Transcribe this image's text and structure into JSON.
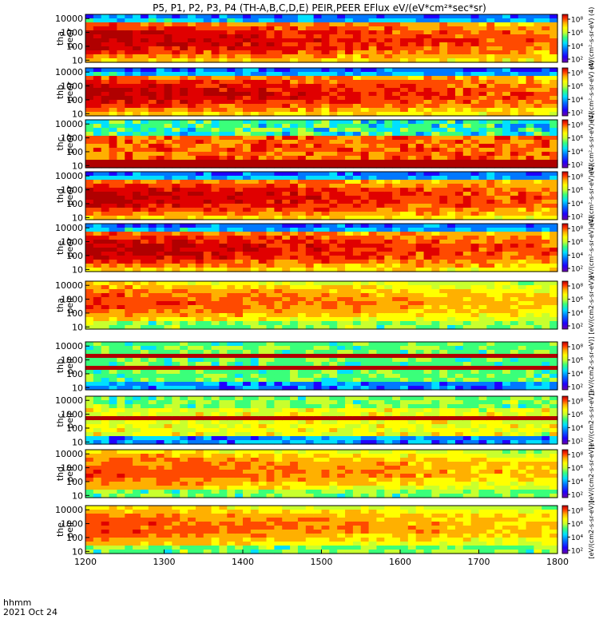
{
  "title": "P5, P1, P2, P3, P4 (TH-A,B,C,D,E) PEIR,PEER EFlux eV/(eV*cm²*sec*sr)",
  "colors": {
    "frame": "#000000",
    "background": "#ffffff",
    "colormap": [
      "#6b00a8",
      "#1f00ff",
      "#0078ff",
      "#00e0ff",
      "#3aff7a",
      "#c8ff2e",
      "#ffff00",
      "#ffb000",
      "#ff4a00",
      "#e00000",
      "#b00000"
    ]
  },
  "chart_data": {
    "type": "heatmap",
    "xaxis": {
      "label_line1": "hhmm",
      "label_line2": "2021 Oct 24",
      "range": [
        1200,
        1800
      ],
      "ticks": [
        1200,
        1300,
        1400,
        1500,
        1600,
        1700,
        1800
      ],
      "tick_labels": [
        "1200",
        "1300",
        "1400",
        "1500",
        "1600",
        "1700",
        "1800"
      ]
    },
    "yaxis": {
      "scale": "log",
      "range": [
        7,
        20000
      ],
      "tick_values": [
        10,
        100,
        1000,
        10000
      ],
      "tick_labels": [
        "10",
        "100",
        "1000",
        "10000"
      ]
    },
    "colorbar": {
      "scale": "log",
      "unit_label_electron": "eV/(cm²-s-sr-eV) (4)",
      "unit_label_ion": "[eV/(cm2-s-sr-eV)]",
      "tick_labels": [
        "10⁸",
        "10⁶",
        "10⁴",
        "10²"
      ]
    },
    "panels": [
      {
        "label": [
          "tha",
          "peer"
        ],
        "intensity": "high",
        "base": "#ff4000"
      },
      {
        "label": [
          "thb",
          "peer"
        ],
        "intensity": "high",
        "base": "#d80000"
      },
      {
        "label": [
          "thc",
          "peer"
        ],
        "intensity": "mixed",
        "base": "#ff3000"
      },
      {
        "label": [
          "thd",
          "peer"
        ],
        "intensity": "high",
        "base": "#ff5a00"
      },
      {
        "label": [
          "the",
          "peer"
        ],
        "intensity": "high",
        "base": "#ff3a00"
      },
      {
        "label": [
          "tha",
          "peir"
        ],
        "intensity": "medium",
        "base": "#ffd000"
      },
      {
        "label": [
          "thb",
          "peir"
        ],
        "intensity": "bands",
        "base": "#ff3000"
      },
      {
        "label": [
          "thc",
          "peir"
        ],
        "intensity": "band",
        "base": "#ff2000"
      },
      {
        "label": [
          "thd",
          "peir"
        ],
        "intensity": "medium",
        "base": "#ffc000"
      },
      {
        "label": [
          "the",
          "peir"
        ],
        "intensity": "medium",
        "base": "#ffd000"
      }
    ]
  }
}
